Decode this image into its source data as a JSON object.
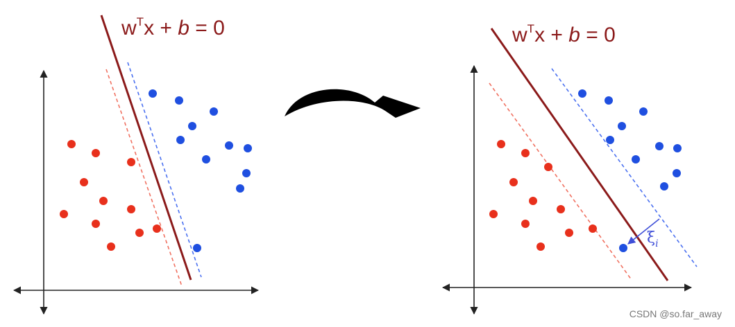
{
  "colors": {
    "hyperplane": "#8b1a1a",
    "red_margin": "#f07060",
    "blue_margin": "#4a70f0",
    "red_point": "#e8301c",
    "blue_point": "#1f4fe0",
    "slack": "#3f4fd8",
    "axis": "#222222",
    "arrow": "#000000",
    "watermark": "#777777"
  },
  "panels": [
    {
      "equation": {
        "w": "w",
        "sup": "T",
        "x": "x + ",
        "b": "b",
        "rest": " = 0"
      },
      "red_points": 12,
      "blue_points": 12
    },
    {
      "equation": {
        "w": "w",
        "sup": "T",
        "x": "x + ",
        "b": "b",
        "rest": " = 0"
      },
      "slack": {
        "symbol": "ξ",
        "subscript": "i"
      },
      "red_points": 12,
      "blue_points": 12
    }
  ],
  "transition_icon": "curved-arrow-icon",
  "watermark": "CSDN @so.far_away"
}
